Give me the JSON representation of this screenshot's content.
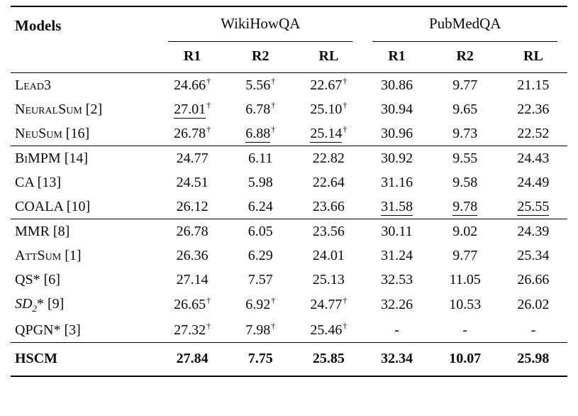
{
  "table": {
    "models_header": "Models",
    "dagger": "†",
    "col_groups": [
      {
        "label": "WikiHowQA",
        "cols": [
          "R1",
          "R2",
          "RL"
        ]
      },
      {
        "label": "PubMedQA",
        "cols": [
          "R1",
          "R2",
          "RL"
        ]
      }
    ],
    "groups": [
      {
        "rows": [
          {
            "model": [
              {
                "t": "Lead3",
                "s": "sc"
              }
            ],
            "cells": [
              {
                "v": "24.66",
                "d": 1
              },
              {
                "v": "5.56",
                "d": 1
              },
              {
                "v": "22.67",
                "d": 1
              },
              {
                "v": "30.86"
              },
              {
                "v": "9.77"
              },
              {
                "v": "21.15"
              }
            ]
          },
          {
            "model": [
              {
                "t": "NeuralSum",
                "s": "sc"
              },
              {
                "t": " [2]",
                "s": "n"
              }
            ],
            "cells": [
              {
                "v": "27.01",
                "d": 1,
                "u": 1
              },
              {
                "v": "6.78",
                "d": 1
              },
              {
                "v": "25.10",
                "d": 1
              },
              {
                "v": "30.94"
              },
              {
                "v": "9.65"
              },
              {
                "v": "22.36"
              }
            ]
          },
          {
            "model": [
              {
                "t": "NeuSum",
                "s": "sc"
              },
              {
                "t": " [16]",
                "s": "n"
              }
            ],
            "cells": [
              {
                "v": "26.78",
                "d": 1
              },
              {
                "v": "6.88",
                "d": 1,
                "u": 1
              },
              {
                "v": "25.14",
                "d": 1,
                "u": 1
              },
              {
                "v": "30.96"
              },
              {
                "v": "9.73"
              },
              {
                "v": "22.52"
              }
            ]
          }
        ]
      },
      {
        "rows": [
          {
            "model": [
              {
                "t": "BiMPM",
                "s": "sc"
              },
              {
                "t": " [14]",
                "s": "n"
              }
            ],
            "cells": [
              {
                "v": "24.77"
              },
              {
                "v": "6.11"
              },
              {
                "v": "22.82"
              },
              {
                "v": "30.92"
              },
              {
                "v": "9.55"
              },
              {
                "v": "24.43"
              }
            ]
          },
          {
            "model": [
              {
                "t": "CA [13]",
                "s": "n"
              }
            ],
            "cells": [
              {
                "v": "24.51"
              },
              {
                "v": "5.98"
              },
              {
                "v": "22.64"
              },
              {
                "v": "31.16"
              },
              {
                "v": "9.58"
              },
              {
                "v": "24.49"
              }
            ]
          },
          {
            "model": [
              {
                "t": "COALA [10]",
                "s": "n"
              }
            ],
            "cells": [
              {
                "v": "26.12"
              },
              {
                "v": "6.24"
              },
              {
                "v": "23.66"
              },
              {
                "v": "31.58",
                "u": 1
              },
              {
                "v": "9.78",
                "u": 1
              },
              {
                "v": "25.55",
                "u": 1
              }
            ]
          }
        ]
      },
      {
        "rows": [
          {
            "model": [
              {
                "t": "MMR [8]",
                "s": "n"
              }
            ],
            "cells": [
              {
                "v": "26.78"
              },
              {
                "v": "6.05"
              },
              {
                "v": "23.56"
              },
              {
                "v": "30.11"
              },
              {
                "v": "9.02"
              },
              {
                "v": "24.39"
              }
            ]
          },
          {
            "model": [
              {
                "t": "AttSum",
                "s": "sc"
              },
              {
                "t": " [1]",
                "s": "n"
              }
            ],
            "cells": [
              {
                "v": "26.36"
              },
              {
                "v": "6.29"
              },
              {
                "v": "24.01"
              },
              {
                "v": "31.24"
              },
              {
                "v": "9.77"
              },
              {
                "v": "25.34"
              }
            ]
          },
          {
            "model": [
              {
                "t": "QS* [6]",
                "s": "n"
              }
            ],
            "cells": [
              {
                "v": "27.14"
              },
              {
                "v": "7.57"
              },
              {
                "v": "25.13"
              },
              {
                "v": "32.53"
              },
              {
                "v": "11.05"
              },
              {
                "v": "26.66"
              }
            ]
          },
          {
            "model": [
              {
                "t": "SD",
                "s": "i"
              },
              {
                "t": "2",
                "s": "isub"
              },
              {
                "t": "* [9]",
                "s": "n"
              }
            ],
            "cells": [
              {
                "v": "26.65",
                "d": 1
              },
              {
                "v": "6.92",
                "d": 1
              },
              {
                "v": "24.77",
                "d": 1
              },
              {
                "v": "32.26"
              },
              {
                "v": "10.53"
              },
              {
                "v": "26.02"
              }
            ]
          },
          {
            "model": [
              {
                "t": "QPGN* [3]",
                "s": "n"
              }
            ],
            "cells": [
              {
                "v": "27.32",
                "d": 1
              },
              {
                "v": "7.98",
                "d": 1
              },
              {
                "v": "25.46",
                "d": 1
              },
              {
                "v": "-"
              },
              {
                "v": "-"
              },
              {
                "v": "-"
              }
            ]
          }
        ]
      },
      {
        "rows": [
          {
            "model": [
              {
                "t": "HSCM",
                "s": "b"
              }
            ],
            "bold": true,
            "cells": [
              {
                "v": "27.84"
              },
              {
                "v": "7.75"
              },
              {
                "v": "25.85"
              },
              {
                "v": "32.34"
              },
              {
                "v": "10.07"
              },
              {
                "v": "25.98"
              }
            ]
          }
        ]
      }
    ]
  }
}
